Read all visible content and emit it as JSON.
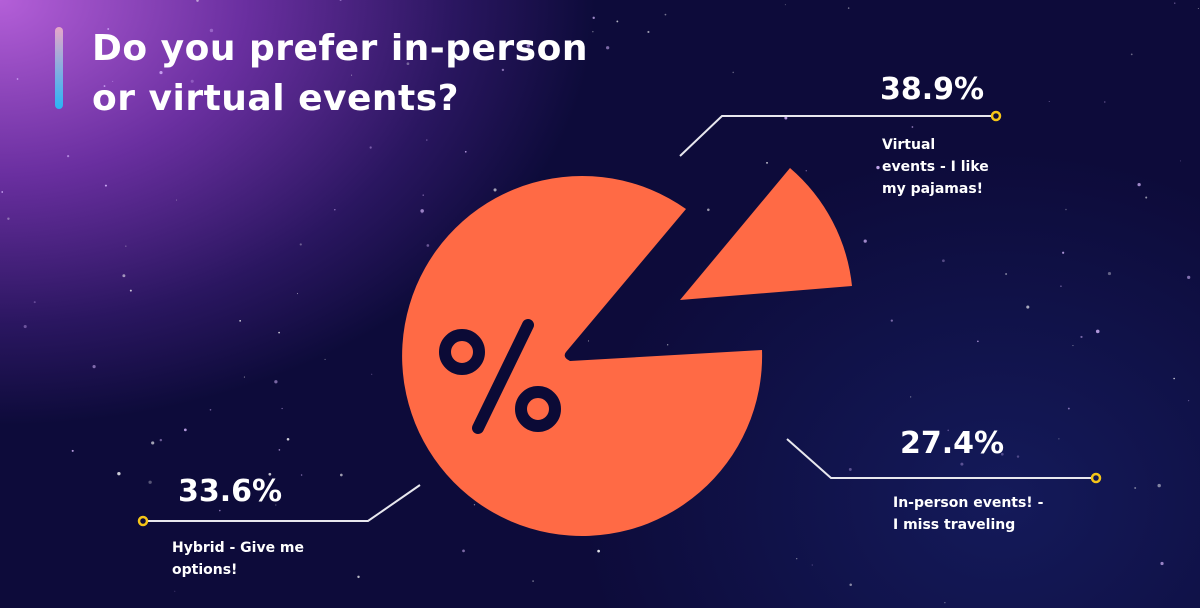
{
  "title": {
    "line1": "Do you prefer in-person",
    "line2": "or virtual events?"
  },
  "colors": {
    "slice": "#ff6a45",
    "background": "#0b0a36",
    "marker": "#f5c518",
    "accent_top": "#e7a6c9",
    "accent_bottom": "#2ab4f5"
  },
  "center_icon": "percent-icon",
  "chart_data": {
    "type": "pie",
    "title": "Do you prefer in-person or virtual events?",
    "categories": [
      "Virtual events - I like my pajamas!",
      "In-person events! - I miss traveling",
      "Hybrid - Give me options!"
    ],
    "values": [
      38.9,
      27.4,
      33.6
    ],
    "labels": [
      {
        "value": "38.9%",
        "line1": "Virtual",
        "line2": "events - I like",
        "line3": "my pajamas!"
      },
      {
        "value": "27.4%",
        "line1": "In-person events! -",
        "line2": "I miss traveling"
      },
      {
        "value": "33.6%",
        "line1": "Hybrid - Give me",
        "line2": "options!"
      }
    ],
    "exploded": "Virtual events - I like my pajamas!",
    "legend": "none"
  }
}
